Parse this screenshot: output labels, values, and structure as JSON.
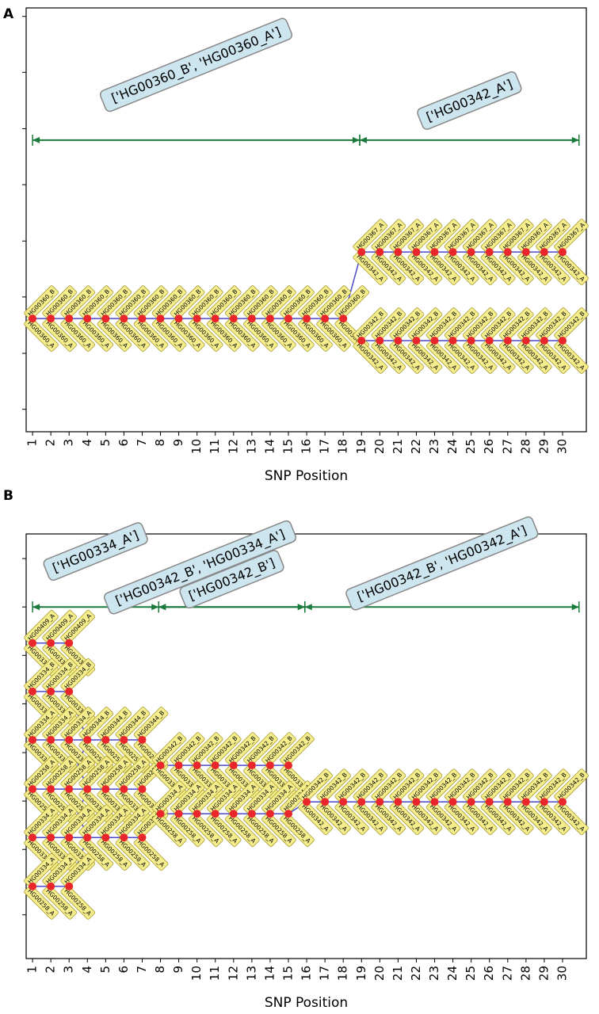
{
  "chart_data": [
    {
      "type": "haplotype",
      "panel": "A",
      "xlabel": "SNP Position",
      "xlim": [
        0.65,
        31.3
      ],
      "xticks": [
        1,
        2,
        3,
        4,
        5,
        6,
        7,
        8,
        9,
        10,
        11,
        12,
        13,
        14,
        15,
        16,
        17,
        18,
        19,
        20,
        21,
        22,
        23,
        24,
        25,
        26,
        27,
        28,
        29,
        30
      ],
      "ylim": [
        0,
        100
      ],
      "yticks": [
        98,
        84.8,
        71.5,
        58.3,
        45,
        31.8,
        18.5,
        5.3
      ],
      "node_color": "#e8262b",
      "edge_color": "#4a4ac4",
      "segment_color": "#1b7a3c",
      "segments": [
        {
          "label": "['HG00360_B', 'HG00360_A']",
          "start": 1,
          "end": 18.9,
          "level": 68.8
        },
        {
          "label": "['HG00342_A']",
          "start": 18.9,
          "end": 30.9,
          "level": 68.8
        }
      ],
      "rows": [
        {
          "x": [
            1,
            2,
            3,
            4,
            5,
            6,
            7,
            8,
            9,
            10,
            11,
            12,
            13,
            14,
            15,
            16,
            17,
            18
          ],
          "level": 26.7,
          "label_above": "HG00360_B",
          "label_below": "HG00360_A"
        },
        {
          "x": [
            19,
            20,
            21,
            22,
            23,
            24,
            25,
            26,
            27,
            28,
            29,
            30
          ],
          "level": 42.4,
          "label_above": "HG00367_A",
          "label_below": "HG00342_A"
        },
        {
          "x": [
            19,
            20,
            21,
            22,
            23,
            24,
            25,
            26,
            27,
            28,
            29,
            30
          ],
          "level": 21.5,
          "label_above": "HG00342_B",
          "label_below": "HG00342_A"
        }
      ]
    },
    {
      "type": "haplotype",
      "panel": "B",
      "xlabel": "SNP Position",
      "xlim": [
        0.65,
        31.3
      ],
      "xticks": [
        1,
        2,
        3,
        4,
        5,
        6,
        7,
        8,
        9,
        10,
        11,
        12,
        13,
        14,
        15,
        16,
        17,
        18,
        19,
        20,
        21,
        22,
        23,
        24,
        25,
        26,
        27,
        28,
        29,
        30
      ],
      "ylim": [
        0,
        100
      ],
      "yticks": [
        94.2,
        82.8,
        71.4,
        60,
        48.5,
        37.1,
        25.7,
        10.3
      ],
      "node_color": "#e8262b",
      "edge_color": "#4a4ac4",
      "segment_color": "#1b7a3c",
      "segments": [
        {
          "label": "['HG00334_A']",
          "start": 1,
          "end": 7.9,
          "level": 82.8
        },
        {
          "label": "['HG00342_B', 'HG00334_A']",
          "start": 7.9,
          "end": 15.9,
          "level": 82.8
        },
        {
          "label": "['HG00342_B']",
          "start": 7.9,
          "end": 15.9,
          "level": 82.8
        },
        {
          "label": "['HG00342_B', 'HG00342_A']",
          "start": 15.9,
          "end": 30.9,
          "level": 82.8
        }
      ],
      "rows": [
        {
          "x": [
            1,
            2,
            3
          ],
          "level": 74.3,
          "label_above": "HG00409_A",
          "label_below": "HG00334_A"
        },
        {
          "x": [
            1,
            2,
            3
          ],
          "level": 62.9,
          "label_above": "HG00334_B",
          "label_below": "HG00334_A"
        },
        {
          "x": [
            1,
            2,
            3
          ],
          "level": 51.5,
          "label_above": "HG00334_A",
          "label_below": "HG00334_A"
        },
        {
          "x": [
            1,
            2,
            3
          ],
          "level": 39.9,
          "label_above": "HG00258_A",
          "label_below": "HG00258_A"
        },
        {
          "x": [
            1,
            2,
            3
          ],
          "level": 28.5,
          "label_above": "HG00334_A",
          "label_below": "HG00334_A"
        },
        {
          "x": [
            1,
            2,
            3
          ],
          "level": 17.0,
          "label_above": "HG00334_A",
          "label_below": "HG00258_A"
        },
        {
          "x": [
            4,
            5,
            6,
            7
          ],
          "level": 51.5,
          "label_above": "HG00344_B",
          "label_below": "HG00258_A"
        },
        {
          "x": [
            4,
            5,
            6,
            7
          ],
          "level": 39.9,
          "label_above": "HG00258_A",
          "label_below": "HG00334_A"
        },
        {
          "x": [
            4,
            5,
            6,
            7
          ],
          "level": 28.5,
          "label_above": "HG00334_A",
          "label_below": "HG00258_A"
        },
        {
          "x": [
            8,
            9,
            10,
            11,
            12,
            13,
            14,
            15
          ],
          "level": 45.5,
          "label_above": "HG00342_B",
          "label_below": "HG00334_A"
        },
        {
          "x": [
            8,
            9,
            10,
            11,
            12,
            13,
            14,
            15
          ],
          "level": 34.1,
          "label_above": "HG00334_A",
          "label_below": "HG00258_A"
        },
        {
          "x": [
            16,
            17,
            18,
            19,
            20,
            21,
            22,
            23,
            24,
            25,
            26,
            27,
            28,
            29,
            30
          ],
          "level": 36.9,
          "label_above": "HG00342_B",
          "label_below": "HG00342_A"
        }
      ]
    }
  ]
}
